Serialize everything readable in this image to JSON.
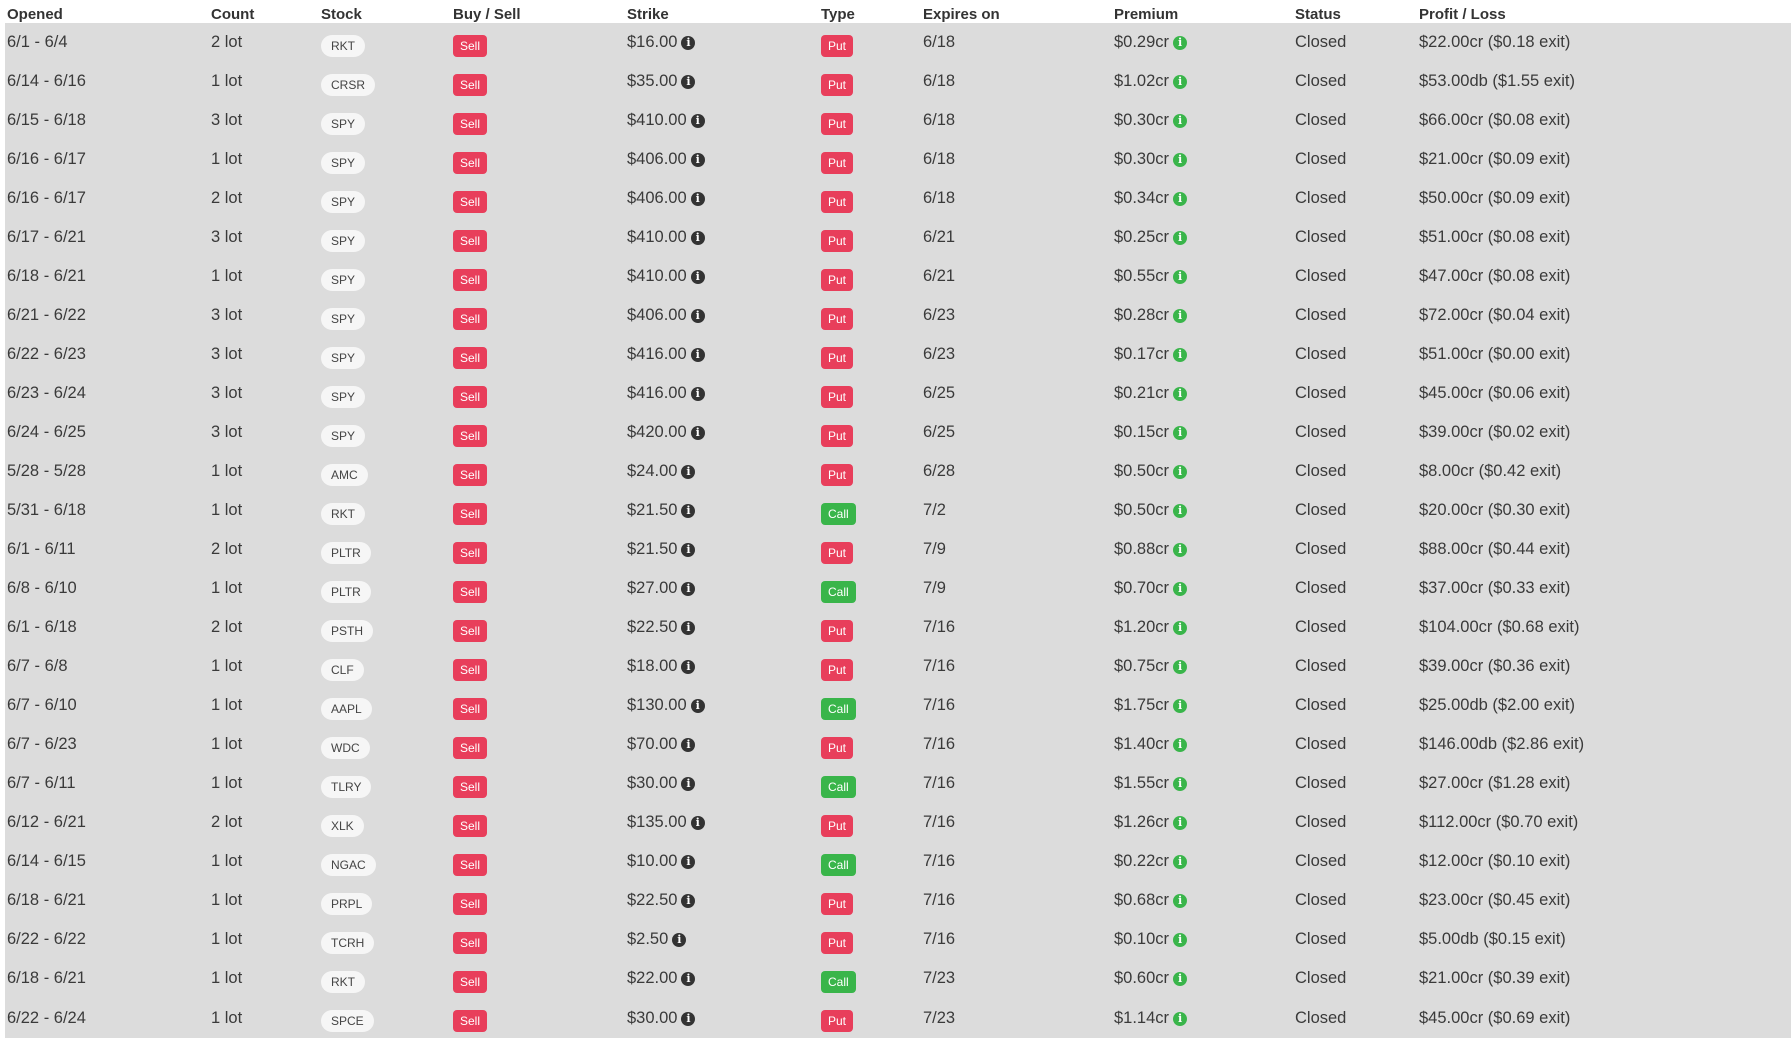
{
  "colors": {
    "sell": "#e83e5b",
    "put": "#e83e5b",
    "call": "#39b54a",
    "credit": "#39b54a",
    "debit": "#e83e5b",
    "row_bg": "#dcdcdc"
  },
  "columns": [
    "Opened",
    "Count",
    "Stock",
    "Buy / Sell",
    "Strike",
    "Type",
    "Expires on",
    "Premium",
    "Status",
    "Profit / Loss"
  ],
  "rows": [
    {
      "opened": "6/1 - 6/4",
      "count": "2 lot",
      "stock": "RKT",
      "side": "Sell",
      "strike": "$16.00",
      "type": "Put",
      "expires": "6/18",
      "premium": "$0.29cr",
      "status": "Closed",
      "pl": "$22.00cr ($0.18 exit)",
      "pl_kind": "credit"
    },
    {
      "opened": "6/14 - 6/16",
      "count": "1 lot",
      "stock": "CRSR",
      "side": "Sell",
      "strike": "$35.00",
      "type": "Put",
      "expires": "6/18",
      "premium": "$1.02cr",
      "status": "Closed",
      "pl": "$53.00db ($1.55 exit)",
      "pl_kind": "debit"
    },
    {
      "opened": "6/15 - 6/18",
      "count": "3 lot",
      "stock": "SPY",
      "side": "Sell",
      "strike": "$410.00",
      "type": "Put",
      "expires": "6/18",
      "premium": "$0.30cr",
      "status": "Closed",
      "pl": "$66.00cr ($0.08 exit)",
      "pl_kind": "credit"
    },
    {
      "opened": "6/16 - 6/17",
      "count": "1 lot",
      "stock": "SPY",
      "side": "Sell",
      "strike": "$406.00",
      "type": "Put",
      "expires": "6/18",
      "premium": "$0.30cr",
      "status": "Closed",
      "pl": "$21.00cr ($0.09 exit)",
      "pl_kind": "credit"
    },
    {
      "opened": "6/16 - 6/17",
      "count": "2 lot",
      "stock": "SPY",
      "side": "Sell",
      "strike": "$406.00",
      "type": "Put",
      "expires": "6/18",
      "premium": "$0.34cr",
      "status": "Closed",
      "pl": "$50.00cr ($0.09 exit)",
      "pl_kind": "credit"
    },
    {
      "opened": "6/17 - 6/21",
      "count": "3 lot",
      "stock": "SPY",
      "side": "Sell",
      "strike": "$410.00",
      "type": "Put",
      "expires": "6/21",
      "premium": "$0.25cr",
      "status": "Closed",
      "pl": "$51.00cr ($0.08 exit)",
      "pl_kind": "credit"
    },
    {
      "opened": "6/18 - 6/21",
      "count": "1 lot",
      "stock": "SPY",
      "side": "Sell",
      "strike": "$410.00",
      "type": "Put",
      "expires": "6/21",
      "premium": "$0.55cr",
      "status": "Closed",
      "pl": "$47.00cr ($0.08 exit)",
      "pl_kind": "credit"
    },
    {
      "opened": "6/21 - 6/22",
      "count": "3 lot",
      "stock": "SPY",
      "side": "Sell",
      "strike": "$406.00",
      "type": "Put",
      "expires": "6/23",
      "premium": "$0.28cr",
      "status": "Closed",
      "pl": "$72.00cr ($0.04 exit)",
      "pl_kind": "credit"
    },
    {
      "opened": "6/22 - 6/23",
      "count": "3 lot",
      "stock": "SPY",
      "side": "Sell",
      "strike": "$416.00",
      "type": "Put",
      "expires": "6/23",
      "premium": "$0.17cr",
      "status": "Closed",
      "pl": "$51.00cr ($0.00 exit)",
      "pl_kind": "credit"
    },
    {
      "opened": "6/23 - 6/24",
      "count": "3 lot",
      "stock": "SPY",
      "side": "Sell",
      "strike": "$416.00",
      "type": "Put",
      "expires": "6/25",
      "premium": "$0.21cr",
      "status": "Closed",
      "pl": "$45.00cr ($0.06 exit)",
      "pl_kind": "credit"
    },
    {
      "opened": "6/24 - 6/25",
      "count": "3 lot",
      "stock": "SPY",
      "side": "Sell",
      "strike": "$420.00",
      "type": "Put",
      "expires": "6/25",
      "premium": "$0.15cr",
      "status": "Closed",
      "pl": "$39.00cr ($0.02 exit)",
      "pl_kind": "credit"
    },
    {
      "opened": "5/28 - 5/28",
      "count": "1 lot",
      "stock": "AMC",
      "side": "Sell",
      "strike": "$24.00",
      "type": "Put",
      "expires": "6/28",
      "premium": "$0.50cr",
      "status": "Closed",
      "pl": "$8.00cr ($0.42 exit)",
      "pl_kind": "credit"
    },
    {
      "opened": "5/31 - 6/18",
      "count": "1 lot",
      "stock": "RKT",
      "side": "Sell",
      "strike": "$21.50",
      "type": "Call",
      "expires": "7/2",
      "premium": "$0.50cr",
      "status": "Closed",
      "pl": "$20.00cr ($0.30 exit)",
      "pl_kind": "credit"
    },
    {
      "opened": "6/1 - 6/11",
      "count": "2 lot",
      "stock": "PLTR",
      "side": "Sell",
      "strike": "$21.50",
      "type": "Put",
      "expires": "7/9",
      "premium": "$0.88cr",
      "status": "Closed",
      "pl": "$88.00cr ($0.44 exit)",
      "pl_kind": "credit"
    },
    {
      "opened": "6/8 - 6/10",
      "count": "1 lot",
      "stock": "PLTR",
      "side": "Sell",
      "strike": "$27.00",
      "type": "Call",
      "expires": "7/9",
      "premium": "$0.70cr",
      "status": "Closed",
      "pl": "$37.00cr ($0.33 exit)",
      "pl_kind": "credit"
    },
    {
      "opened": "6/1 - 6/18",
      "count": "2 lot",
      "stock": "PSTH",
      "side": "Sell",
      "strike": "$22.50",
      "type": "Put",
      "expires": "7/16",
      "premium": "$1.20cr",
      "status": "Closed",
      "pl": "$104.00cr ($0.68 exit)",
      "pl_kind": "credit"
    },
    {
      "opened": "6/7 - 6/8",
      "count": "1 lot",
      "stock": "CLF",
      "side": "Sell",
      "strike": "$18.00",
      "type": "Put",
      "expires": "7/16",
      "premium": "$0.75cr",
      "status": "Closed",
      "pl": "$39.00cr ($0.36 exit)",
      "pl_kind": "credit"
    },
    {
      "opened": "6/7 - 6/10",
      "count": "1 lot",
      "stock": "AAPL",
      "side": "Sell",
      "strike": "$130.00",
      "type": "Call",
      "expires": "7/16",
      "premium": "$1.75cr",
      "status": "Closed",
      "pl": "$25.00db ($2.00 exit)",
      "pl_kind": "debit"
    },
    {
      "opened": "6/7 - 6/23",
      "count": "1 lot",
      "stock": "WDC",
      "side": "Sell",
      "strike": "$70.00",
      "type": "Put",
      "expires": "7/16",
      "premium": "$1.40cr",
      "status": "Closed",
      "pl": "$146.00db ($2.86 exit)",
      "pl_kind": "debit"
    },
    {
      "opened": "6/7 - 6/11",
      "count": "1 lot",
      "stock": "TLRY",
      "side": "Sell",
      "strike": "$30.00",
      "type": "Call",
      "expires": "7/16",
      "premium": "$1.55cr",
      "status": "Closed",
      "pl": "$27.00cr ($1.28 exit)",
      "pl_kind": "credit"
    },
    {
      "opened": "6/12 - 6/21",
      "count": "2 lot",
      "stock": "XLK",
      "side": "Sell",
      "strike": "$135.00",
      "type": "Put",
      "expires": "7/16",
      "premium": "$1.26cr",
      "status": "Closed",
      "pl": "$112.00cr ($0.70 exit)",
      "pl_kind": "credit"
    },
    {
      "opened": "6/14 - 6/15",
      "count": "1 lot",
      "stock": "NGAC",
      "side": "Sell",
      "strike": "$10.00",
      "type": "Call",
      "expires": "7/16",
      "premium": "$0.22cr",
      "status": "Closed",
      "pl": "$12.00cr ($0.10 exit)",
      "pl_kind": "credit"
    },
    {
      "opened": "6/18 - 6/21",
      "count": "1 lot",
      "stock": "PRPL",
      "side": "Sell",
      "strike": "$22.50",
      "type": "Put",
      "expires": "7/16",
      "premium": "$0.68cr",
      "status": "Closed",
      "pl": "$23.00cr ($0.45 exit)",
      "pl_kind": "credit"
    },
    {
      "opened": "6/22 - 6/22",
      "count": "1 lot",
      "stock": "TCRH",
      "side": "Sell",
      "strike": "$2.50",
      "type": "Put",
      "expires": "7/16",
      "premium": "$0.10cr",
      "status": "Closed",
      "pl": "$5.00db ($0.15 exit)",
      "pl_kind": "debit"
    },
    {
      "opened": "6/18 - 6/21",
      "count": "1 lot",
      "stock": "RKT",
      "side": "Sell",
      "strike": "$22.00",
      "type": "Call",
      "expires": "7/23",
      "premium": "$0.60cr",
      "status": "Closed",
      "pl": "$21.00cr ($0.39 exit)",
      "pl_kind": "credit"
    },
    {
      "opened": "6/22 - 6/24",
      "count": "1 lot",
      "stock": "SPCE",
      "side": "Sell",
      "strike": "$30.00",
      "type": "Put",
      "expires": "7/23",
      "premium": "$1.14cr",
      "status": "Closed",
      "pl": "$45.00cr ($0.69 exit)",
      "pl_kind": "credit"
    }
  ]
}
